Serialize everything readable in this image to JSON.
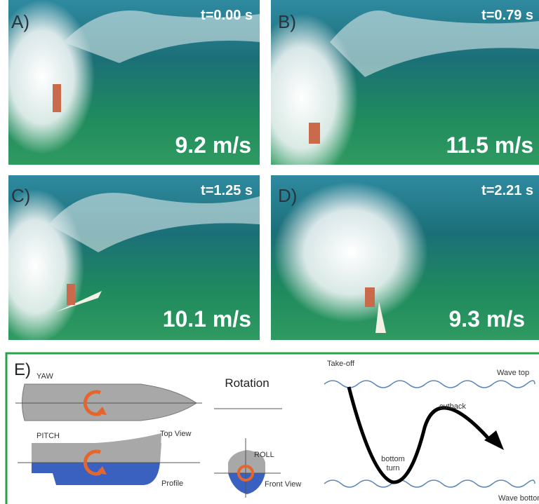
{
  "panels": [
    {
      "label": "A)",
      "time": "t=0.00 s",
      "speed": "9.2 m/s"
    },
    {
      "label": "B)",
      "time": "t=0.79 s",
      "speed": "11.5 m/s"
    },
    {
      "label": "C)",
      "time": "t=1.25 s",
      "speed": "10.1 m/s"
    },
    {
      "label": "D)",
      "time": "t=2.21 s",
      "speed": "9.3 m/s"
    }
  ],
  "diagram": {
    "label": "E)",
    "yaw": "YAW",
    "top_view": "Top View",
    "pitch": "PITCH",
    "profile": "Profile",
    "rotation": "Rotation",
    "roll": "ROLL",
    "front_view": "Front View",
    "take_off": "Take-off",
    "wave_top": "Wave top",
    "cutback": "cutback",
    "bottom_turn": [
      "bottom",
      "turn"
    ],
    "wave_bottom": "Wave bottom"
  }
}
